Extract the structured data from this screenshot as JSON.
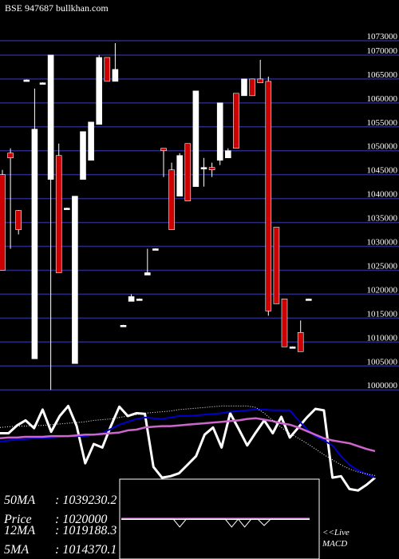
{
  "header": {
    "title": "BSE 947687 bullkhan.com"
  },
  "colors": {
    "background": "#000000",
    "gridline": "#2a2a80",
    "up_candle": "#ffffff",
    "down_candle": "#cc0000",
    "ma_fast": "#0000cc",
    "ma_slow": "#cc66cc",
    "macd_line": "#ffffff"
  },
  "chart_data": {
    "type": "candlestick",
    "y_axis": {
      "side": "right",
      "ticks": [
        1073000,
        1070000,
        1065000,
        1060000,
        1055000,
        1050000,
        1045000,
        1040000,
        1035000,
        1030000,
        1025000,
        1020000,
        1015000,
        1010000,
        1005000,
        1000000
      ],
      "ylim": [
        999700,
        1075500
      ],
      "grid": true
    },
    "candles": [
      {
        "o": 1045000,
        "h": 1046000,
        "l": 1025000,
        "c": 1025000
      },
      {
        "o": 1049500,
        "h": 1050500,
        "l": 1029500,
        "c": 1048500
      },
      {
        "o": 1037500,
        "h": 1037600,
        "l": 1032500,
        "c": 1033500
      },
      {
        "o": 1064800,
        "h": 1064900,
        "l": 1064700,
        "c": 1064800
      },
      {
        "o": 1006500,
        "h": 1063000,
        "l": 1006500,
        "c": 1054500
      },
      {
        "o": 1064200,
        "h": 1064300,
        "l": 1064100,
        "c": 1064200
      },
      {
        "o": 1044000,
        "h": 1070000,
        "l": 1000000,
        "c": 1070000
      },
      {
        "o": 1049000,
        "h": 1051500,
        "l": 1024500,
        "c": 1024500
      },
      {
        "o": 1038000,
        "h": 1038100,
        "l": 1037900,
        "c": 1038000
      },
      {
        "o": 1005500,
        "h": 1040500,
        "l": 1005500,
        "c": 1040500
      },
      {
        "o": 1044000,
        "h": 1054000,
        "l": 1044000,
        "c": 1054000
      },
      {
        "o": 1048000,
        "h": 1056000,
        "l": 1048000,
        "c": 1056000
      },
      {
        "o": 1055500,
        "h": 1070000,
        "l": 1055500,
        "c": 1069500
      },
      {
        "o": 1069500,
        "h": 1069500,
        "l": 1064500,
        "c": 1064500
      },
      {
        "o": 1064500,
        "h": 1072500,
        "l": 1064500,
        "c": 1067000
      },
      {
        "o": 1013500,
        "h": 1013600,
        "l": 1013400,
        "c": 1013500
      },
      {
        "o": 1018500,
        "h": 1020000,
        "l": 1018500,
        "c": 1019500
      },
      {
        "o": 1019000,
        "h": 1019100,
        "l": 1018900,
        "c": 1019000
      },
      {
        "o": 1024000,
        "h": 1029500,
        "l": 1024000,
        "c": 1024500
      },
      {
        "o": 1029500,
        "h": 1029600,
        "l": 1029400,
        "c": 1029500
      },
      {
        "o": 1050500,
        "h": 1050500,
        "l": 1044500,
        "c": 1050000
      },
      {
        "o": 1046000,
        "h": 1047500,
        "l": 1033500,
        "c": 1033500
      },
      {
        "o": 1040500,
        "h": 1049500,
        "l": 1040500,
        "c": 1049000
      },
      {
        "o": 1051500,
        "h": 1051500,
        "l": 1039500,
        "c": 1039500
      },
      {
        "o": 1042500,
        "h": 1062500,
        "l": 1042500,
        "c": 1062500
      },
      {
        "o": 1046500,
        "h": 1048500,
        "l": 1042500,
        "c": 1046500
      },
      {
        "o": 1046500,
        "h": 1047500,
        "l": 1044500,
        "c": 1046000
      },
      {
        "o": 1048000,
        "h": 1060000,
        "l": 1047000,
        "c": 1060000
      },
      {
        "o": 1048500,
        "h": 1050500,
        "l": 1048500,
        "c": 1050000
      },
      {
        "o": 1062000,
        "h": 1062000,
        "l": 1050500,
        "c": 1050500
      },
      {
        "o": 1061500,
        "h": 1065000,
        "l": 1061500,
        "c": 1065000
      },
      {
        "o": 1065000,
        "h": 1065000,
        "l": 1061500,
        "c": 1061500
      },
      {
        "o": 1065000,
        "h": 1069000,
        "l": 1064200,
        "c": 1064200
      },
      {
        "o": 1064500,
        "h": 1065500,
        "l": 1015500,
        "c": 1016500
      },
      {
        "o": 1034000,
        "h": 1034000,
        "l": 1018000,
        "c": 1018000
      },
      {
        "o": 1019000,
        "h": 1019000,
        "l": 1009000,
        "c": 1009000
      },
      {
        "o": 1009000,
        "h": 1009100,
        "l": 1008900,
        "c": 1009000
      },
      {
        "o": 1012000,
        "h": 1014500,
        "l": 1008000,
        "c": 1008000
      },
      {
        "o": 1019000,
        "h": 1019100,
        "l": 1018900,
        "c": 1019000
      }
    ],
    "indicator_panel": {
      "series": [
        {
          "key": "price",
          "values": [
            0.62,
            0.62,
            0.73,
            0.8,
            0.69,
            0.95,
            0.64,
            0.86,
            1.0,
            0.72,
            0.2,
            0.47,
            0.42,
            0.72,
            0.99,
            0.86,
            0.9,
            0.89,
            0.15,
            0.0,
            0.02,
            0.06,
            0.18,
            0.3,
            0.6,
            0.7,
            0.42,
            0.9,
            0.68,
            0.45,
            0.63,
            0.8,
            0.62,
            0.85,
            0.56,
            0.7,
            0.84,
            0.96,
            0.94,
            0.0,
            0.02,
            -0.16,
            -0.18,
            -0.1,
            0.0
          ]
        },
        {
          "key": "ma_fast",
          "values": [
            0.5,
            0.52,
            0.53,
            0.54,
            0.55,
            0.55,
            0.56,
            0.57,
            0.58,
            0.58,
            0.58,
            0.6,
            0.62,
            0.68,
            0.74,
            0.78,
            0.82,
            0.84,
            0.83,
            0.82,
            0.84,
            0.86,
            0.86,
            0.87,
            0.88,
            0.89,
            0.9,
            0.92,
            0.93,
            0.94,
            0.95,
            0.95,
            0.94,
            0.94,
            0.94,
            0.8,
            0.68,
            0.58,
            0.52,
            0.45,
            0.3,
            0.18,
            0.1,
            0.05,
            0.0
          ]
        },
        {
          "key": "ma_slow",
          "values": [
            0.55,
            0.56,
            0.56,
            0.57,
            0.57,
            0.57,
            0.58,
            0.58,
            0.58,
            0.59,
            0.6,
            0.6,
            0.61,
            0.62,
            0.63,
            0.66,
            0.67,
            0.7,
            0.71,
            0.72,
            0.72,
            0.73,
            0.74,
            0.75,
            0.76,
            0.77,
            0.78,
            0.79,
            0.8,
            0.82,
            0.83,
            0.81,
            0.79,
            0.76,
            0.74,
            0.7,
            0.65,
            0.6,
            0.55,
            0.52,
            0.5,
            0.48,
            0.44,
            0.4,
            0.37
          ]
        },
        {
          "key": "ma_slowest",
          "values": [
            0.7,
            0.71,
            0.72,
            0.72,
            0.73,
            0.73,
            0.74,
            0.75,
            0.76,
            0.77,
            0.78,
            0.8,
            0.81,
            0.82,
            0.84,
            0.86,
            0.88,
            0.9,
            0.91,
            0.92,
            0.93,
            0.95,
            0.96,
            0.97,
            0.98,
            0.99,
            1.0,
            1.0,
            1.0,
            1.0,
            0.98,
            0.9,
            0.8,
            0.7,
            0.62,
            0.55,
            0.48,
            0.4,
            0.32,
            0.25,
            0.18,
            0.12,
            0.08,
            0.05,
            0.03
          ]
        }
      ],
      "range": [
        -0.3,
        1.15
      ]
    },
    "stats": [
      {
        "label": "50MA",
        "value": "1039230.2"
      },
      {
        "label": "Price",
        "value": "1020000"
      },
      {
        "label": "12MA",
        "value": "1019188.3"
      },
      {
        "label": "5MA",
        "value": "1014370.1"
      }
    ],
    "macd_panel": {
      "label_line1": "<<Live",
      "label_line2": "MACD",
      "values": [
        0.0,
        0.0,
        0.0,
        0.0,
        0.0,
        0.0,
        0.0,
        0.0,
        0.0,
        -0.25,
        0.0,
        0.0,
        0.0,
        0.0,
        0.0,
        0.0,
        0.0,
        -0.25,
        0.0,
        -0.25,
        0.0,
        0.0,
        -0.2,
        0.0,
        0.0,
        0.0,
        0.0,
        0.0,
        0.0,
        0.0
      ]
    }
  }
}
